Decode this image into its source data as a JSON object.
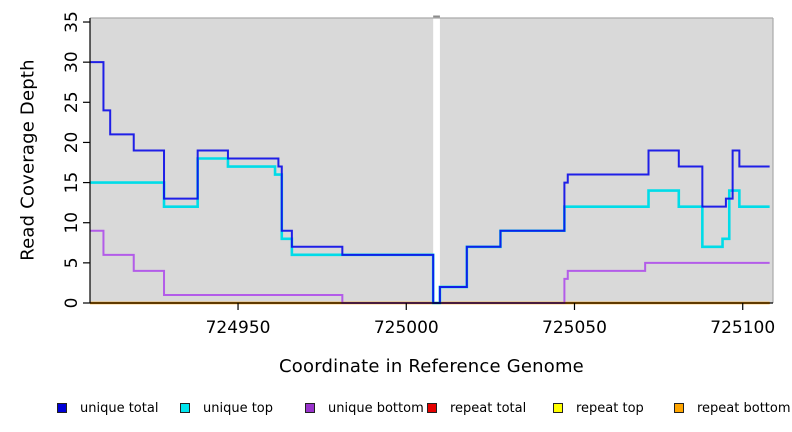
{
  "chart_data": {
    "type": "line",
    "subtype": "step-coverage-plot",
    "title": "",
    "xlabel": "Coordinate in Reference Genome",
    "ylabel": "Read Coverage Depth",
    "xlim": [
      724906,
      725109
    ],
    "ylim": [
      0,
      35.5
    ],
    "x_ticks": [
      724950,
      725000,
      725050,
      725100
    ],
    "y_ticks": [
      0,
      5,
      10,
      15,
      20,
      25,
      30,
      35
    ],
    "grid": false,
    "plot_background": "#d9d9d9",
    "masked_region": {
      "from": 725008,
      "to": 725010,
      "color": "#ffffff"
    },
    "legend_position": "bottom",
    "series_range": {
      "from": 724906,
      "to": 725108
    },
    "series": [
      {
        "name": "unique total",
        "color": "#0f0fe8",
        "steps": [
          [
            724906,
            30
          ],
          [
            724910,
            24
          ],
          [
            724912,
            21
          ],
          [
            724919,
            19
          ],
          [
            724928,
            13
          ],
          [
            724938,
            19
          ],
          [
            724947,
            18
          ],
          [
            724962,
            17
          ],
          [
            724963,
            9
          ],
          [
            724966,
            7
          ],
          [
            724981,
            6
          ],
          [
            725008,
            0
          ],
          [
            725010,
            2
          ],
          [
            725018,
            7
          ],
          [
            725028,
            9
          ],
          [
            725047,
            15
          ],
          [
            725048,
            16
          ],
          [
            725072,
            19
          ],
          [
            725081,
            17
          ],
          [
            725088,
            12
          ],
          [
            725095,
            13
          ],
          [
            725097,
            19
          ],
          [
            725099,
            17
          ]
        ]
      },
      {
        "name": "unique top",
        "color": "#00dce8",
        "steps": [
          [
            724906,
            15
          ],
          [
            724928,
            12
          ],
          [
            724938,
            18
          ],
          [
            724947,
            17
          ],
          [
            724961,
            16
          ],
          [
            724963,
            8
          ],
          [
            724966,
            6
          ],
          [
            725008,
            0
          ],
          [
            725010,
            2
          ],
          [
            725018,
            7
          ],
          [
            725028,
            9
          ],
          [
            725047,
            12
          ],
          [
            725072,
            14
          ],
          [
            725081,
            12
          ],
          [
            725088,
            7
          ],
          [
            725094,
            8
          ],
          [
            725096,
            14
          ],
          [
            725099,
            12
          ]
        ]
      },
      {
        "name": "unique bottom",
        "color": "#a020f0",
        "steps": [
          [
            724906,
            9
          ],
          [
            724910,
            6
          ],
          [
            724919,
            4
          ],
          [
            724928,
            1
          ],
          [
            724981,
            0
          ],
          [
            725047,
            3
          ],
          [
            725048,
            4
          ],
          [
            725071,
            5
          ]
        ]
      },
      {
        "name": "repeat total",
        "color": "#e00000",
        "steps": [
          [
            724906,
            0
          ]
        ]
      },
      {
        "name": "repeat top",
        "color": "#ffee00",
        "steps": [
          [
            724906,
            0
          ]
        ]
      },
      {
        "name": "repeat bottom",
        "color": "#ff9d00",
        "steps": [
          [
            724906,
            0
          ]
        ]
      }
    ],
    "draw_order": [
      3,
      4,
      5,
      2,
      1,
      0
    ]
  },
  "legend": {
    "items": [
      {
        "label": "unique total",
        "color": "#0000d8"
      },
      {
        "label": "unique top",
        "color": "#00e5ee"
      },
      {
        "label": "unique bottom",
        "color": "#9933cc"
      },
      {
        "label": "repeat total",
        "color": "#e60000"
      },
      {
        "label": "repeat top",
        "color": "#ffff00"
      },
      {
        "label": "repeat bottom",
        "color": "#ffa500"
      }
    ]
  }
}
